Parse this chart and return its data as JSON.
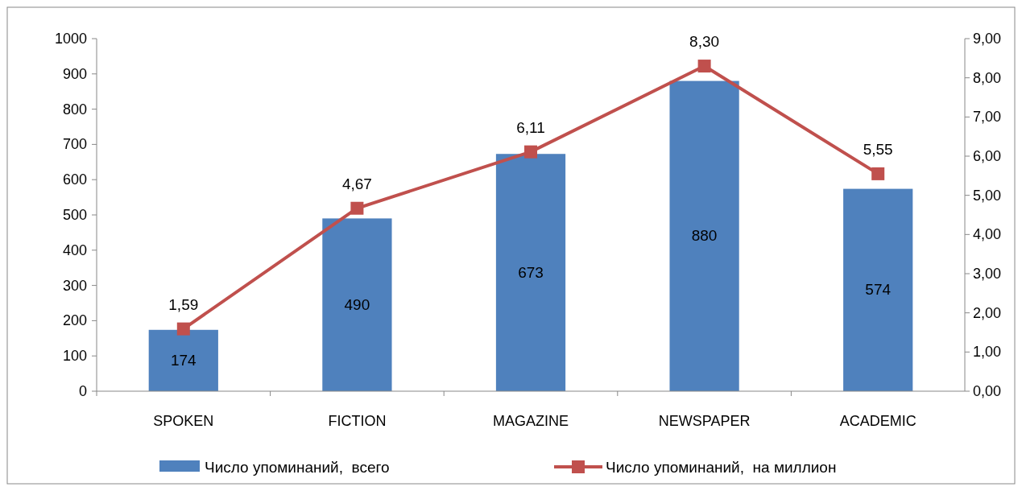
{
  "chart_data": {
    "type": "bar",
    "categories": [
      "SPOKEN",
      "FICTION",
      "MAGAZINE",
      "NEWSPAPER",
      "ACADEMIC"
    ],
    "series": [
      {
        "name": "Число упоминаний,  всего",
        "color": "#4f81bd",
        "values": [
          174,
          490,
          673,
          880,
          574
        ],
        "value_labels": [
          "174",
          "490",
          "673",
          "880",
          "574"
        ]
      },
      {
        "name": "Число упоминаний,  на миллион",
        "type": "line",
        "axis": "y2",
        "color": "#c0504d",
        "marker": "square",
        "values": [
          1.59,
          4.67,
          6.11,
          8.3,
          5.55
        ],
        "value_labels": [
          "1,59",
          "4,67",
          "6,11",
          "8,30",
          "5,55"
        ]
      }
    ],
    "ylim": [
      0,
      1000
    ],
    "yticks": [
      0,
      100,
      200,
      300,
      400,
      500,
      600,
      700,
      800,
      900,
      1000
    ],
    "y2lim": [
      0,
      9
    ],
    "y2ticks": [
      {
        "value": 0,
        "label": "0,00"
      },
      {
        "value": 1,
        "label": "1,00"
      },
      {
        "value": 2,
        "label": "2,00"
      },
      {
        "value": 3,
        "label": "3,00"
      },
      {
        "value": 4,
        "label": "4,00"
      },
      {
        "value": 5,
        "label": "5,00"
      },
      {
        "value": 6,
        "label": "6,00"
      },
      {
        "value": 7,
        "label": "7,00"
      },
      {
        "value": 8,
        "label": "8,00"
      },
      {
        "value": 9,
        "label": "9,00"
      }
    ],
    "grid": false,
    "legend": "bottom"
  }
}
